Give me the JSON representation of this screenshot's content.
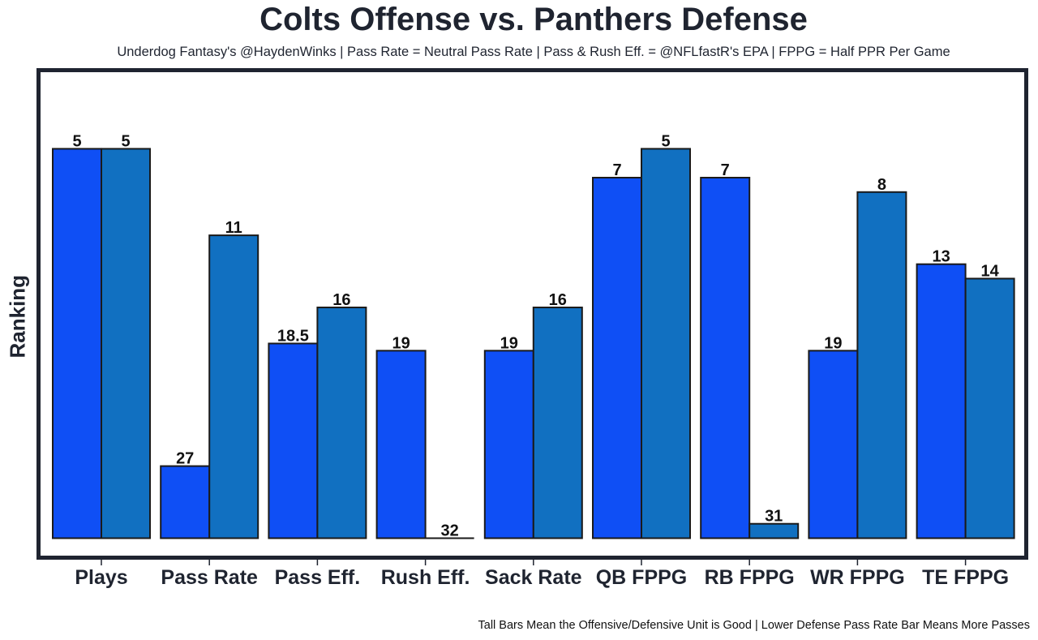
{
  "chart_data": {
    "type": "bar",
    "title": "Colts Offense vs. Panthers Defense",
    "subtitle": "Underdog Fantasy's @HaydenWinks | Pass Rate = Neutral Pass Rate | Pass & Rush Eff. = @NFLfastR's EPA | FPPG = Half PPR Per Game",
    "footer": "Tall Bars Mean the Offensive/Defensive Unit is Good | Lower Defense Pass Rate Bar Means More Passes",
    "xlabel": "",
    "ylabel": "Ranking",
    "categories": [
      "Plays",
      "Pass Rate",
      "Pass Eff.",
      "Rush Eff.",
      "Sack Rate",
      "QB FPPG",
      "RB FPPG",
      "WR FPPG",
      "TE FPPG"
    ],
    "series": [
      {
        "name": "Colts Offense",
        "color": "#0f4ff5",
        "values": [
          5,
          27,
          18.5,
          19,
          19,
          7,
          7,
          19,
          13
        ]
      },
      {
        "name": "Panthers Defense",
        "color": "#1170c1",
        "values": [
          5,
          11,
          16,
          32,
          16,
          5,
          31,
          8,
          14
        ]
      }
    ],
    "bar_height_rule": "height = 32 - ranking (rank 1 tallest, rank 32 zero height)",
    "value_labels": [
      [
        "5",
        "27",
        "18.5",
        "19",
        "19",
        "7",
        "7",
        "19",
        "13"
      ],
      [
        "5",
        "11",
        "16",
        "32",
        "16",
        "5",
        "31",
        "8",
        "14"
      ]
    ],
    "ylim": [
      0,
      31
    ],
    "y_ticks_shown": false,
    "grid": false,
    "legend": "none"
  }
}
